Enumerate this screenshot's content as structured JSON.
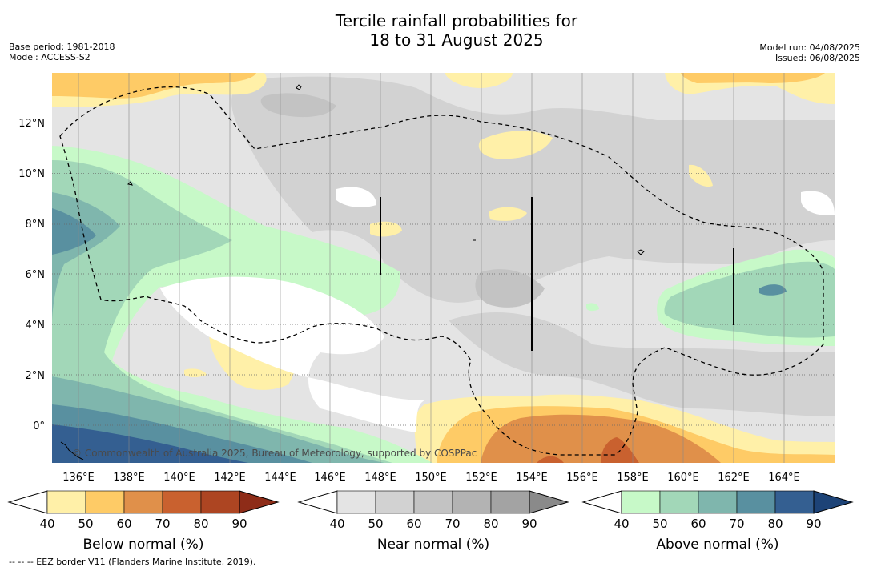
{
  "title": {
    "line1": "Tercile rainfall probabilities for",
    "line2": "18 to 31 August 2025"
  },
  "meta": {
    "base_period": "Base period: 1981-2018",
    "model": "Model: ACCESS-S2",
    "model_run": "Model run: 04/08/2025",
    "issued": "Issued: 06/08/2025"
  },
  "map": {
    "copyright": "© Commonwealth of Australia 2025, Bureau of Meteorology, supported by COSPPac",
    "lon_range": [
      134.6,
      165.6
    ],
    "lat_range": [
      -1.5,
      13.9
    ],
    "lon_ticks": [
      136,
      138,
      140,
      142,
      144,
      146,
      148,
      150,
      152,
      154,
      156,
      158,
      160,
      162,
      164
    ],
    "lon_labels": [
      "136°E",
      "138°E",
      "140°E",
      "142°E",
      "144°E",
      "146°E",
      "148°E",
      "150°E",
      "152°E",
      "154°E",
      "156°E",
      "158°E",
      "160°E",
      "162°E",
      "164°E"
    ],
    "lat_ticks": [
      12,
      10,
      8,
      6,
      4,
      2,
      0
    ],
    "lat_labels": [
      "12°N",
      "10°N",
      "8°N",
      "6°N",
      "4°N",
      "2°N",
      "0°"
    ],
    "colors": {
      "below": [
        "#fff0a8",
        "#fecb66",
        "#e0904a",
        "#c9612f",
        "#ad4522",
        "#8e2c18"
      ],
      "near": [
        "#e4e4e4",
        "#d2d2d2",
        "#c3c3c3",
        "#b3b3b3",
        "#a3a3a3",
        "#8a8a8a"
      ],
      "above": [
        "#c7f9c8",
        "#a2d7b8",
        "#7fb6ad",
        "#5990a0",
        "#345f91",
        "#1d4377"
      ]
    }
  },
  "colorbars": [
    {
      "name": "below",
      "ticks": [
        "40",
        "50",
        "60",
        "70",
        "80",
        "90"
      ],
      "label": "Below normal (%)"
    },
    {
      "name": "near",
      "ticks": [
        "40",
        "50",
        "60",
        "70",
        "80",
        "90"
      ],
      "label": "Near normal (%)"
    },
    {
      "name": "above",
      "ticks": [
        "40",
        "50",
        "60",
        "70",
        "80",
        "90"
      ],
      "label": "Above normal (%)"
    }
  ],
  "footnote": "-- -- -- EEZ border V11 (Flanders Marine Institute, 2019)."
}
